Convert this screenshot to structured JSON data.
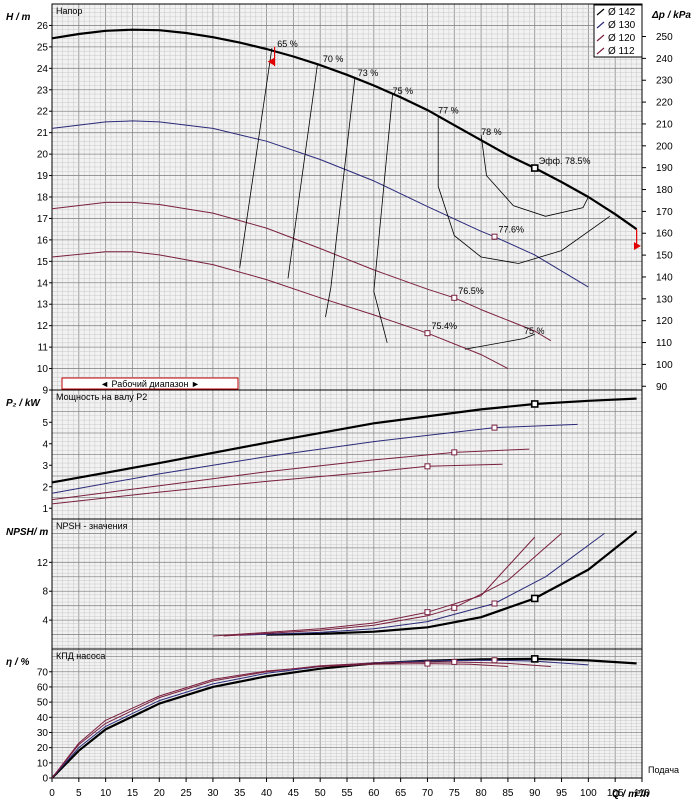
{
  "chart_data": [
    {
      "panel": "head",
      "type": "line",
      "title": "Напор",
      "ylabel": "H / m",
      "ylabel_right": "Δp / kPa",
      "ylim": [
        9,
        27
      ],
      "yticks": [
        9,
        10,
        11,
        12,
        13,
        14,
        15,
        16,
        17,
        18,
        19,
        20,
        21,
        22,
        23,
        24,
        25,
        26
      ],
      "yticks_right": [
        90,
        100,
        110,
        120,
        130,
        140,
        150,
        160,
        170,
        180,
        190,
        200,
        210,
        220,
        230,
        240,
        250
      ],
      "operating_range_label": "Рабочий диапазон",
      "legend": [
        "Ø 142",
        "Ø 130",
        "Ø 120",
        "Ø 112"
      ],
      "series": [
        {
          "name": "Ø 142",
          "color": "#000000",
          "x": [
            0,
            5,
            10,
            15,
            20,
            25,
            30,
            35,
            40,
            45,
            50,
            55,
            60,
            65,
            70,
            75,
            80,
            85,
            90,
            95,
            100,
            105,
            109
          ],
          "y": [
            25.4,
            25.6,
            25.75,
            25.8,
            25.78,
            25.65,
            25.45,
            25.2,
            24.9,
            24.55,
            24.15,
            23.7,
            23.2,
            22.65,
            22.05,
            21.35,
            20.65,
            19.95,
            19.35,
            18.7,
            18.0,
            17.2,
            16.5
          ]
        },
        {
          "name": "Ø 130",
          "color": "#2a2a7a",
          "x": [
            0,
            10,
            15,
            20,
            30,
            40,
            50,
            60,
            70,
            80,
            82.5,
            90,
            100
          ],
          "y": [
            21.2,
            21.5,
            21.55,
            21.5,
            21.2,
            20.6,
            19.75,
            18.75,
            17.55,
            16.4,
            16.15,
            15.3,
            13.8
          ]
        },
        {
          "name": "Ø 120",
          "color": "#7a2040",
          "x": [
            0,
            10,
            15,
            20,
            30,
            40,
            50,
            60,
            70,
            75,
            80,
            90,
            93
          ],
          "y": [
            17.45,
            17.75,
            17.75,
            17.65,
            17.25,
            16.55,
            15.6,
            14.6,
            13.7,
            13.3,
            12.75,
            11.75,
            11.3
          ]
        },
        {
          "name": "Ø 112",
          "color": "#7a2040",
          "x": [
            0,
            10,
            15,
            20,
            30,
            40,
            50,
            60,
            70,
            80,
            85
          ],
          "y": [
            15.2,
            15.45,
            15.45,
            15.3,
            14.85,
            14.15,
            13.3,
            12.5,
            11.65,
            10.65,
            10.0
          ]
        }
      ],
      "duty_points": [
        {
          "x": 90,
          "y": 19.35,
          "label": "Эфф.  78.5%"
        },
        {
          "x": 82.5,
          "y": 16.15,
          "label": "77.6%"
        },
        {
          "x": 75,
          "y": 13.3,
          "label": "76.5%"
        },
        {
          "x": 70,
          "y": 11.65,
          "label": "75.4%"
        }
      ],
      "efficiency_labels": [
        {
          "label": "65 %",
          "x": 42,
          "y": 25.0
        },
        {
          "label": "70 %",
          "x": 50.5,
          "y": 24.3
        },
        {
          "label": "73 %",
          "x": 57,
          "y": 23.65
        },
        {
          "label": "75 %",
          "x": 63.5,
          "y": 22.8
        },
        {
          "label": "77 %",
          "x": 72,
          "y": 21.9
        },
        {
          "label": "78 %",
          "x": 80,
          "y": 20.9
        },
        {
          "label": "75 %",
          "x": 88,
          "y": 11.6
        }
      ]
    },
    {
      "panel": "power",
      "type": "line",
      "title": "Мощность на валу P2",
      "ylabel": "P₂ / kW",
      "ylim": [
        0.5,
        6.5
      ],
      "yticks": [
        1,
        2,
        3,
        4,
        5
      ],
      "series": [
        {
          "name": "Ø 142",
          "color": "#000000",
          "x": [
            0,
            20,
            40,
            60,
            80,
            90,
            100,
            109
          ],
          "y": [
            2.2,
            3.1,
            4.05,
            4.95,
            5.6,
            5.85,
            6.0,
            6.1
          ]
        },
        {
          "name": "Ø 130",
          "color": "#2a2a7a",
          "x": [
            0,
            20,
            40,
            60,
            82.5,
            98
          ],
          "y": [
            1.7,
            2.6,
            3.4,
            4.1,
            4.75,
            4.9
          ]
        },
        {
          "name": "Ø 120",
          "color": "#7a2040",
          "x": [
            0,
            20,
            40,
            60,
            75,
            89
          ],
          "y": [
            1.4,
            2.05,
            2.7,
            3.25,
            3.6,
            3.75
          ]
        },
        {
          "name": "Ø 112",
          "color": "#7a2040",
          "x": [
            0,
            20,
            40,
            60,
            70,
            84
          ],
          "y": [
            1.2,
            1.75,
            2.25,
            2.7,
            2.95,
            3.05
          ]
        }
      ],
      "duty_points": [
        {
          "x": 90,
          "y": 5.85
        },
        {
          "x": 82.5,
          "y": 4.75
        },
        {
          "x": 75,
          "y": 3.6
        },
        {
          "x": 70,
          "y": 2.95
        }
      ]
    },
    {
      "panel": "npsh",
      "type": "line",
      "title": "NPSH - значения",
      "ylabel": "NPSH/ m",
      "ylim": [
        0,
        18
      ],
      "yticks": [
        4,
        8,
        12
      ],
      "series": [
        {
          "name": "Ø 142",
          "color": "#000000",
          "x": [
            40,
            50,
            60,
            70,
            80,
            90,
            100,
            109
          ],
          "y": [
            2.0,
            2.1,
            2.4,
            3.0,
            4.4,
            7.0,
            11.0,
            16.3
          ]
        },
        {
          "name": "Ø 130",
          "color": "#2a2a7a",
          "x": [
            35,
            50,
            60,
            70,
            82.5,
            92,
            103
          ],
          "y": [
            1.9,
            2.3,
            2.8,
            3.8,
            6.3,
            10.0,
            16.0
          ]
        },
        {
          "name": "Ø 120",
          "color": "#7a2040",
          "x": [
            32,
            50,
            60,
            70,
            75,
            85,
            95
          ],
          "y": [
            1.8,
            2.6,
            3.3,
            4.6,
            5.7,
            9.5,
            16.0
          ]
        },
        {
          "name": "Ø 112",
          "color": "#7a2040",
          "x": [
            30,
            50,
            60,
            70,
            80,
            90
          ],
          "y": [
            1.8,
            2.8,
            3.6,
            5.1,
            7.4,
            15.5
          ]
        }
      ],
      "duty_points": [
        {
          "x": 90,
          "y": 7.0
        },
        {
          "x": 82.5,
          "y": 6.3
        },
        {
          "x": 75,
          "y": 5.7
        },
        {
          "x": 70,
          "y": 5.1
        }
      ]
    },
    {
      "panel": "efficiency",
      "type": "line",
      "title": "КПД насоса",
      "ylabel": "η / %",
      "ylim": [
        0,
        85
      ],
      "yticks": [
        0,
        10,
        20,
        30,
        40,
        50,
        60,
        70
      ],
      "xlabel": "Q / m³/h",
      "xlabel_right": "Подача",
      "xlim": [
        0,
        110
      ],
      "xticks": [
        0,
        5,
        10,
        15,
        20,
        25,
        30,
        35,
        40,
        45,
        50,
        55,
        60,
        65,
        70,
        75,
        80,
        85,
        90,
        95,
        100,
        105,
        110
      ],
      "series": [
        {
          "name": "Ø 142",
          "color": "#000000",
          "x": [
            0,
            5,
            10,
            20,
            30,
            40,
            50,
            60,
            70,
            80,
            90,
            100,
            109
          ],
          "y": [
            0,
            18,
            32,
            49,
            60,
            67,
            72,
            75.5,
            77.3,
            78.2,
            78.5,
            77.5,
            75.5
          ]
        },
        {
          "name": "Ø 130",
          "color": "#2a2a7a",
          "x": [
            0,
            5,
            10,
            20,
            30,
            40,
            50,
            60,
            70,
            82.5,
            90,
            100
          ],
          "y": [
            0,
            20,
            34,
            51,
            62,
            69,
            73.5,
            76,
            77.2,
            77.6,
            77,
            74.5
          ]
        },
        {
          "name": "Ø 120",
          "color": "#7a2040",
          "x": [
            0,
            5,
            10,
            20,
            30,
            40,
            50,
            60,
            70,
            75,
            85,
            93
          ],
          "y": [
            0,
            22,
            36,
            53,
            64,
            70,
            74,
            75.8,
            76.4,
            76.5,
            75.5,
            73.5
          ]
        },
        {
          "name": "Ø 112",
          "color": "#7a2040",
          "x": [
            0,
            5,
            10,
            20,
            30,
            40,
            50,
            60,
            70,
            78,
            85
          ],
          "y": [
            0,
            23,
            38,
            54,
            65,
            70.5,
            73.5,
            75,
            75.4,
            75,
            73.5
          ]
        }
      ],
      "duty_points": [
        {
          "x": 90,
          "y": 78.5
        },
        {
          "x": 82.5,
          "y": 77.6
        },
        {
          "x": 75,
          "y": 76.5
        },
        {
          "x": 70,
          "y": 75.4
        }
      ]
    }
  ]
}
